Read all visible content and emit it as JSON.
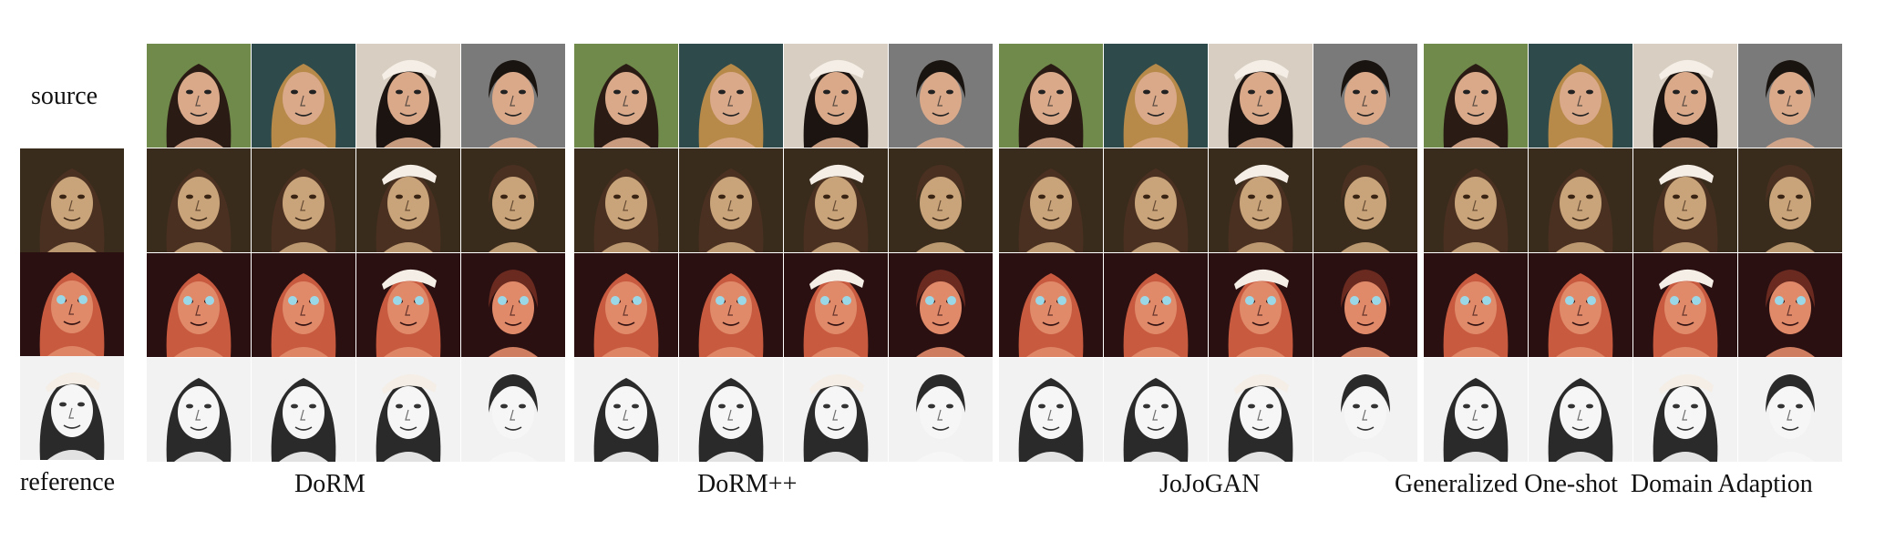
{
  "row_labels": {
    "source": "source",
    "reference": "reference"
  },
  "methods": [
    {
      "name": "DoRM"
    },
    {
      "name": "DoRM++"
    },
    {
      "name": "JoJoGAN"
    },
    {
      "name": "Generalized One-shot  Domain Adaption"
    }
  ],
  "subjects": [
    "woman-dark-hair",
    "woman-blonde",
    "woman-smiling-cap",
    "man-short-hair"
  ],
  "reference_styles": [
    "oil-portrait",
    "cartoon-3d",
    "pencil-sketch"
  ],
  "colors": {
    "oil_bg": "#3a2c1c",
    "oil_skin": "#c9a47a",
    "cartoon_bg": "#2a1010",
    "cartoon_skin": "#e08a6a",
    "sketch_bg": "#f2f2f2",
    "sketch_line": "#333333",
    "photo_bg_green": "#6f8a4a",
    "photo_bg_teal": "#2f4a4a",
    "photo_bg_light": "#d8cfc2",
    "photo_bg_gray": "#7a7a7a"
  }
}
